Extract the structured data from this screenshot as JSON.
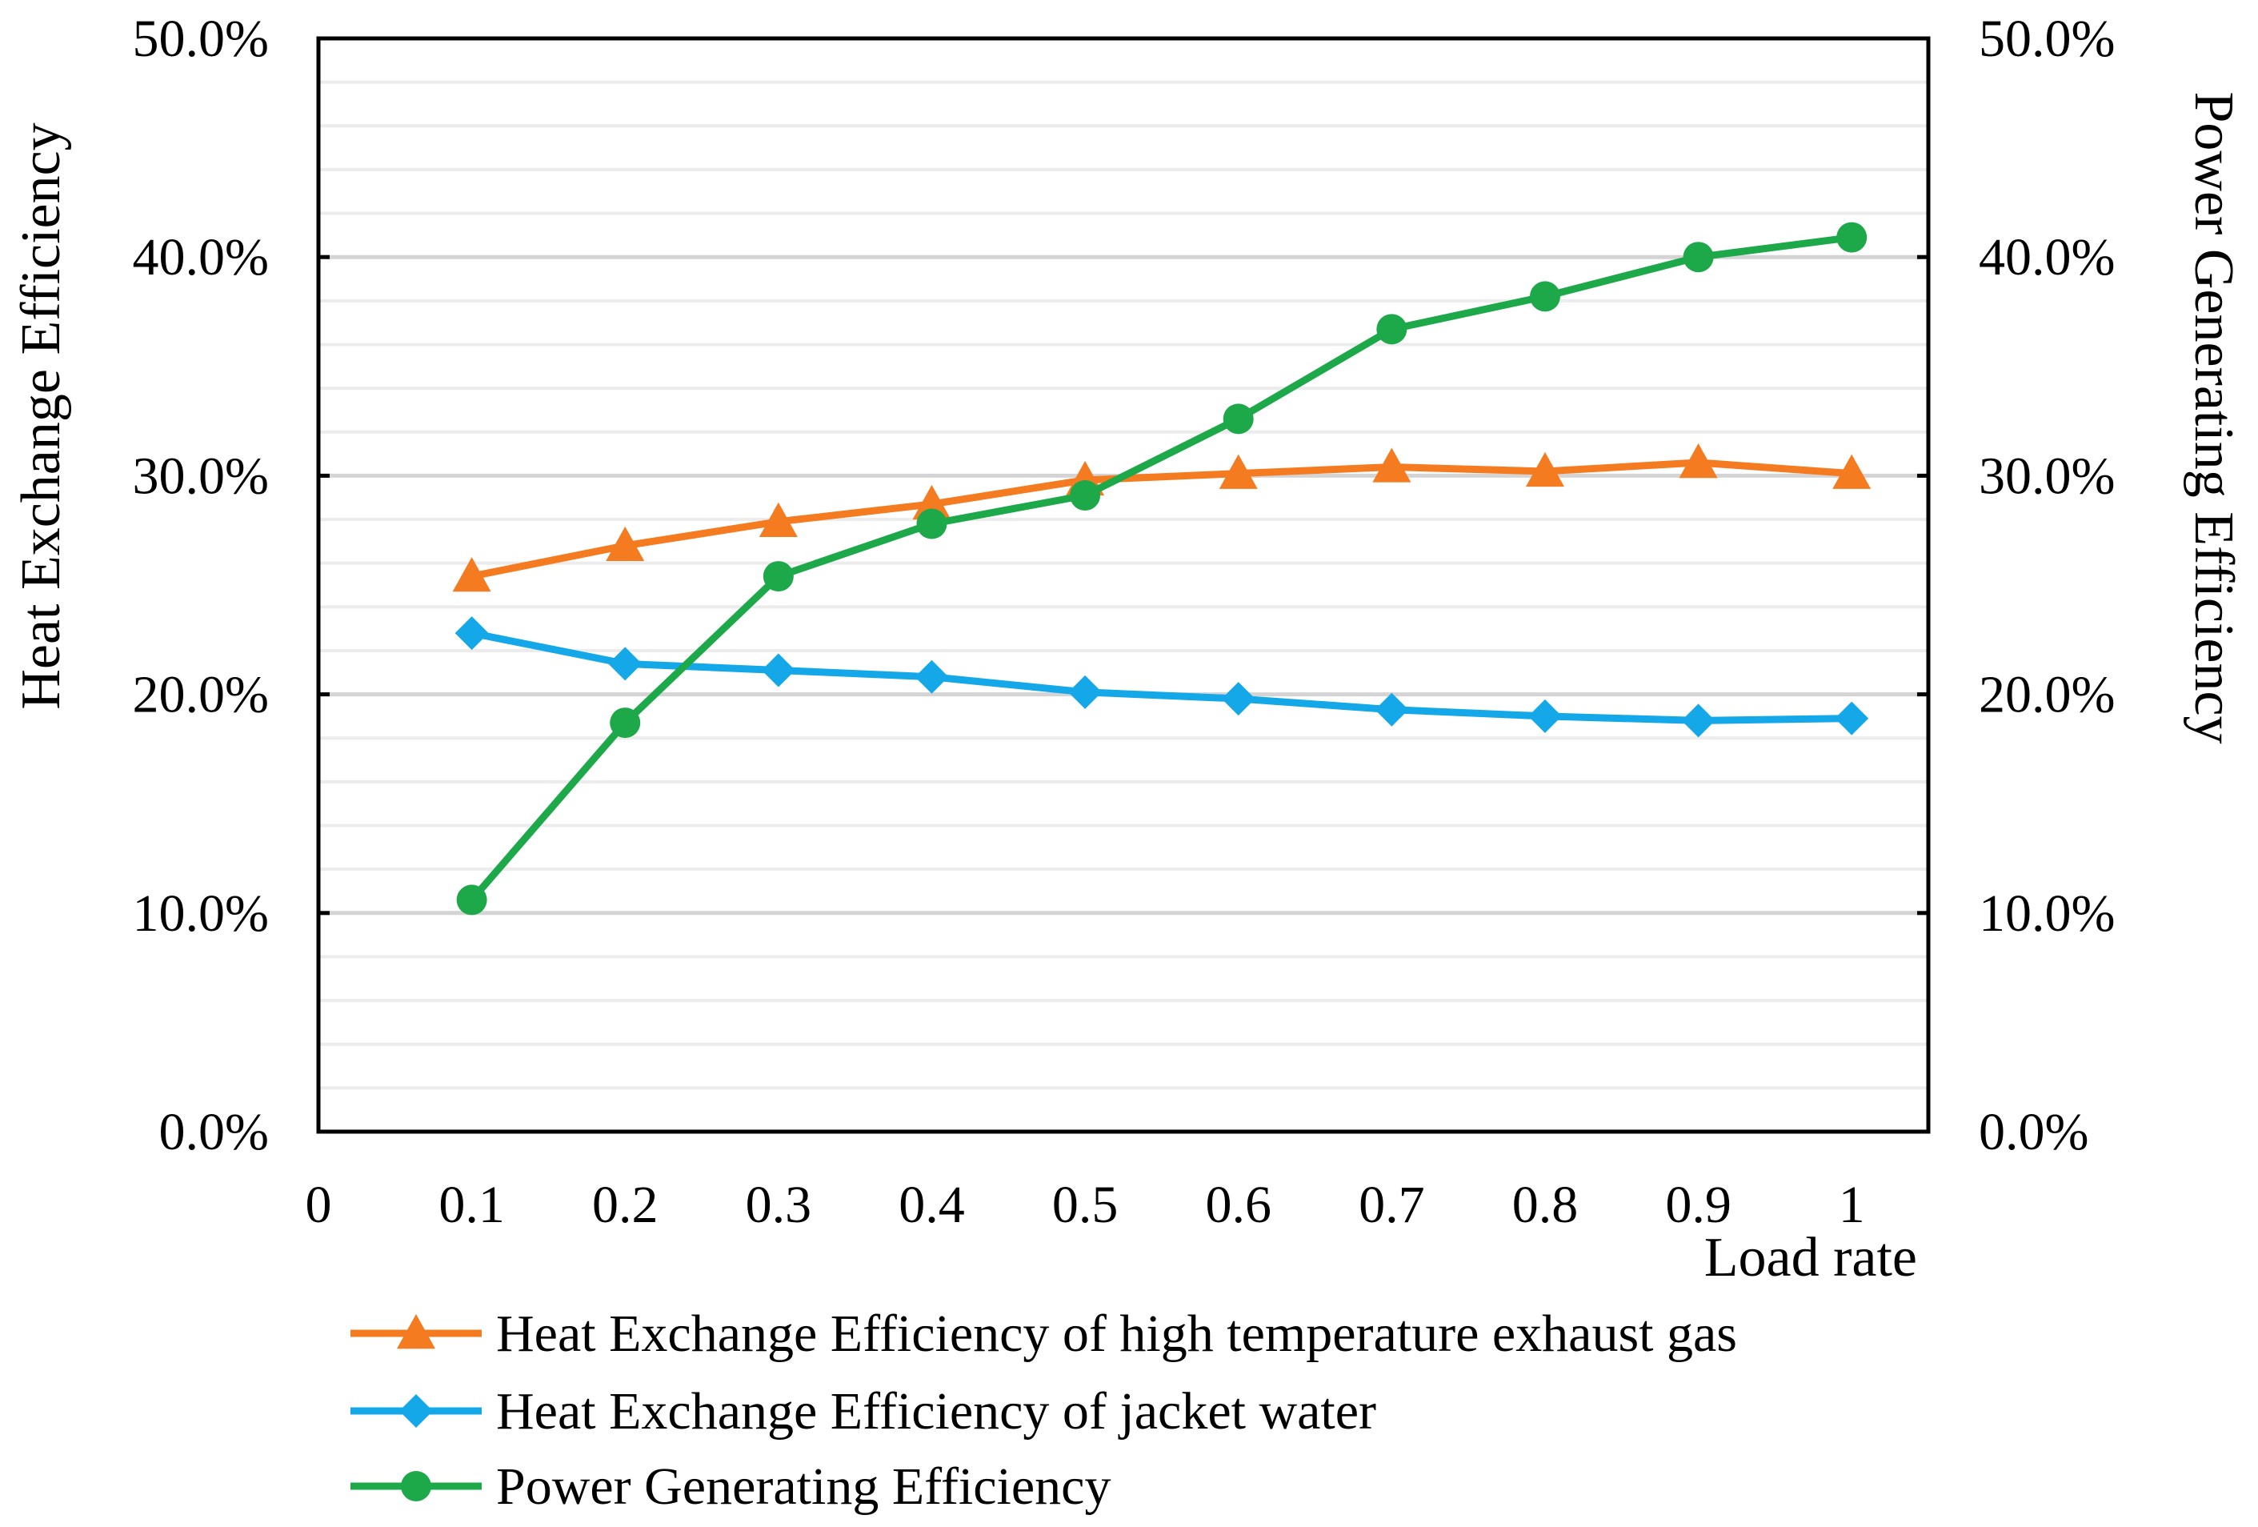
{
  "chart_data": {
    "type": "line",
    "title": "",
    "x": [
      0.1,
      0.2,
      0.3,
      0.4,
      0.5,
      0.6,
      0.7,
      0.8,
      0.9,
      1.0
    ],
    "x_tick_labels": [
      "0",
      "0.1",
      "0.2",
      "0.3",
      "0.4",
      "0.5",
      "0.6",
      "0.7",
      "0.8",
      "0.9",
      "1"
    ],
    "xlim": [
      0,
      1.05
    ],
    "xlabel": "Load rate",
    "ylabel_left": "Heat Exchange Efficiency",
    "ylabel_right": "Power Generating Efficiency",
    "ylim": [
      0,
      50
    ],
    "y_ticks_left": [
      "0.0%",
      "10.0%",
      "20.0%",
      "30.0%",
      "40.0%",
      "50.0%"
    ],
    "y_ticks_right": [
      "0.0%",
      "10.0%",
      "20.0%",
      "30.0%",
      "40.0%",
      "50.0%"
    ],
    "grid": true,
    "legend_position": "bottom",
    "series": [
      {
        "name": "Heat Exchange Efficiency of high temperature exhaust gas",
        "axis": "left",
        "color": "#F47B20",
        "marker": "triangle",
        "values": [
          25.4,
          26.8,
          27.9,
          28.7,
          29.8,
          30.1,
          30.4,
          30.2,
          30.6,
          30.1
        ]
      },
      {
        "name": "Heat Exchange Efficiency of jacket water",
        "axis": "left",
        "color": "#14A8E8",
        "marker": "diamond",
        "values": [
          22.8,
          21.4,
          21.1,
          20.8,
          20.1,
          19.8,
          19.3,
          19.0,
          18.8,
          18.9
        ]
      },
      {
        "name": "Power Generating Efficiency",
        "axis": "right",
        "color": "#1DA84A",
        "marker": "circle",
        "values": [
          10.6,
          18.7,
          25.4,
          27.8,
          29.1,
          32.6,
          36.7,
          38.2,
          40.0,
          40.9
        ]
      }
    ]
  }
}
